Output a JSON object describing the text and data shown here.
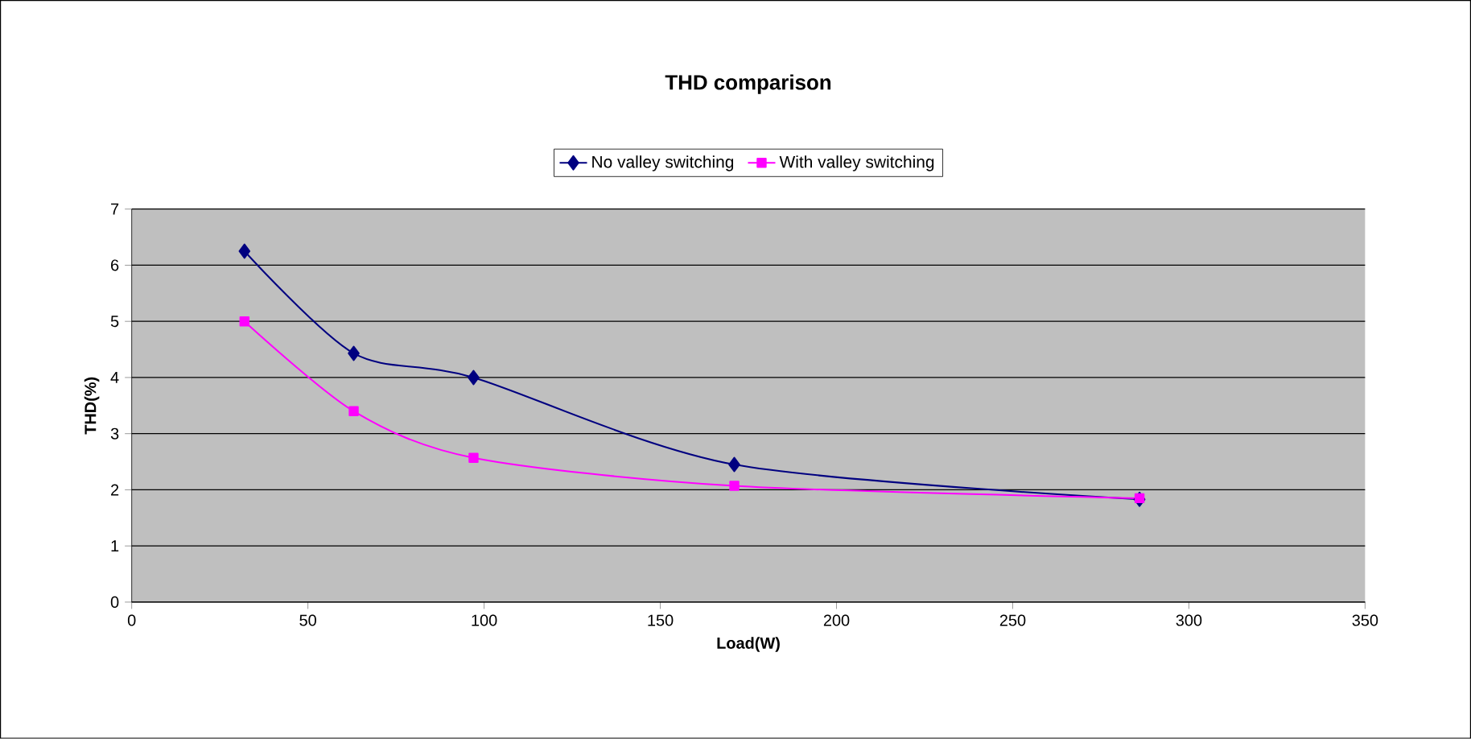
{
  "chart_data": {
    "type": "line",
    "title": "THD comparison",
    "xlabel": "Load(W)",
    "ylabel": "THD(%)",
    "series": [
      {
        "name": "No valley switching",
        "color": "#000080",
        "marker": "diamond",
        "x": [
          32,
          63,
          97,
          171,
          286
        ],
        "values": [
          6.25,
          4.43,
          4.0,
          2.45,
          1.83
        ]
      },
      {
        "name": "With valley switching",
        "color": "#ff00ff",
        "marker": "square",
        "x": [
          32,
          63,
          97,
          171,
          286
        ],
        "values": [
          5.0,
          3.4,
          2.57,
          2.07,
          1.85
        ]
      }
    ],
    "xlim": [
      0,
      350
    ],
    "xticks": [
      0,
      50,
      100,
      150,
      200,
      250,
      300,
      350
    ],
    "ylim": [
      0,
      7
    ],
    "yticks": [
      0,
      1,
      2,
      3,
      4,
      5,
      6,
      7
    ],
    "grid": "y",
    "legend": "top"
  }
}
